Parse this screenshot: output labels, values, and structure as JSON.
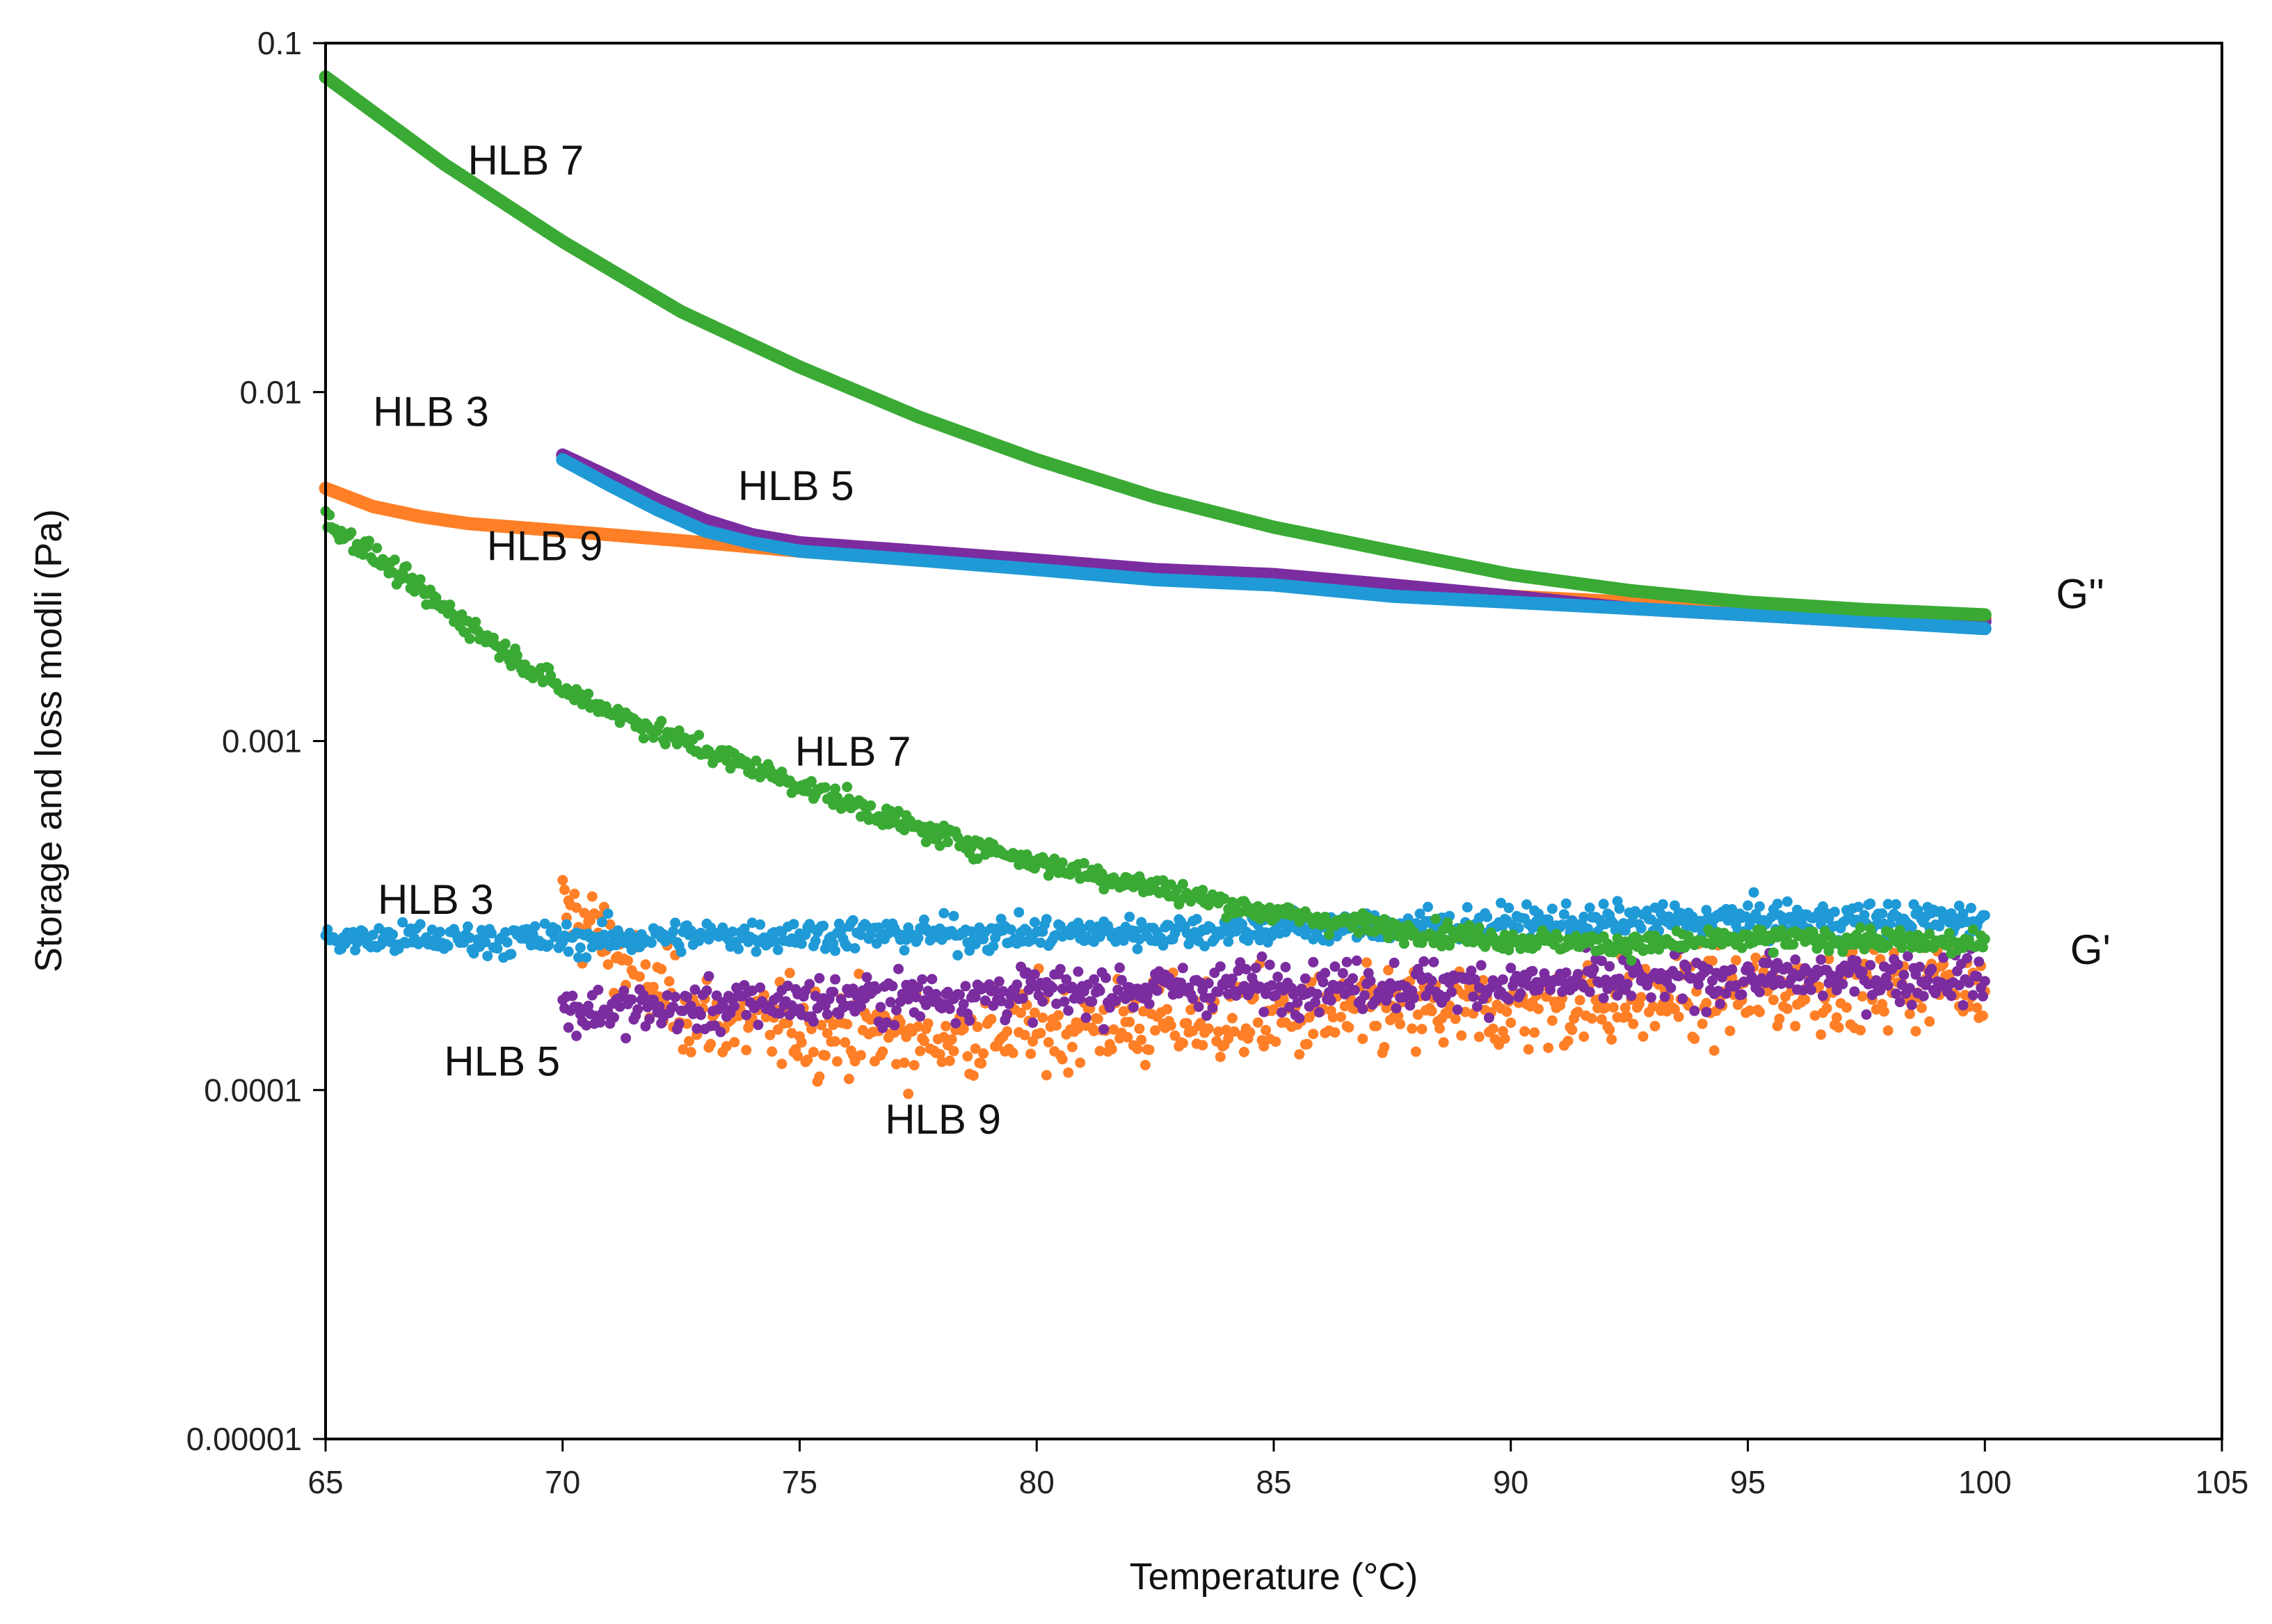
{
  "chart_data": {
    "type": "scatter",
    "title": "",
    "xlabel": "Temperature (°C)",
    "ylabel": "Storage and loss modli (Pa)",
    "xlim": [
      65,
      105
    ],
    "ylim": [
      1e-05,
      0.1
    ],
    "yscale": "log",
    "grid": false,
    "x_ticks": [
      65,
      70,
      75,
      80,
      85,
      90,
      95,
      100,
      105
    ],
    "x_tick_labels": [
      "65",
      "70",
      "75",
      "80",
      "85",
      "90",
      "95",
      "100",
      "105"
    ],
    "y_ticks": [
      1e-05,
      0.0001,
      0.001,
      0.01,
      0.1
    ],
    "y_tick_labels": [
      "0.00001",
      "0.0001",
      "0.001",
      "0.01",
      "0.1"
    ],
    "colors": {
      "HLB 3": "#1f9ad6",
      "HLB 5": "#7b2da0",
      "HLB 7": "#3aaa35",
      "HLB 9": "#ff7f27"
    },
    "series": [
      {
        "name": "HLB 7 G''",
        "sample": "HLB 7",
        "modulus": "G''",
        "noise": 0.0,
        "x": [
          65,
          67.5,
          70,
          72.5,
          75,
          77.5,
          80,
          82.5,
          85,
          87.5,
          90,
          92.5,
          95,
          97.5,
          100
        ],
        "y": [
          0.08,
          0.045,
          0.027,
          0.017,
          0.0118,
          0.0085,
          0.0064,
          0.005,
          0.0041,
          0.0035,
          0.003,
          0.0027,
          0.0025,
          0.00238,
          0.0023
        ]
      },
      {
        "name": "HLB 3 G''",
        "sample": "HLB 3",
        "modulus": "G''",
        "noise": 0.0,
        "x": [
          70,
          71,
          72,
          73,
          74,
          75,
          77.5,
          80,
          82.5,
          85,
          87.5,
          90,
          92.5,
          95,
          97.5,
          100
        ],
        "y": [
          0.0064,
          0.0054,
          0.0046,
          0.004,
          0.0037,
          0.0035,
          0.0033,
          0.0031,
          0.0029,
          0.0028,
          0.0026,
          0.0025,
          0.0024,
          0.0023,
          0.0022,
          0.0021
        ]
      },
      {
        "name": "HLB 5 G''",
        "sample": "HLB 5",
        "modulus": "G''",
        "noise": 0.0,
        "x": [
          70,
          71,
          72,
          73,
          74,
          75,
          77.5,
          80,
          82.5,
          85,
          87.5,
          90,
          92.5,
          95,
          97.5,
          100
        ],
        "y": [
          0.0066,
          0.0057,
          0.0049,
          0.0043,
          0.0039,
          0.0037,
          0.0035,
          0.0033,
          0.0031,
          0.003,
          0.0028,
          0.0026,
          0.0024,
          0.0023,
          0.0022,
          0.0022
        ]
      },
      {
        "name": "HLB 9 G''",
        "sample": "HLB 9",
        "modulus": "G''",
        "noise": 0.0,
        "x": [
          65,
          66,
          67,
          68,
          69,
          70,
          71,
          72,
          73,
          75,
          77.5,
          80,
          82.5,
          85,
          87.5,
          90,
          92.5,
          95,
          97.5,
          100
        ],
        "y": [
          0.0053,
          0.0047,
          0.0044,
          0.0042,
          0.0041,
          0.004,
          0.0039,
          0.0038,
          0.0037,
          0.0035,
          0.0033,
          0.0032,
          0.003,
          0.0029,
          0.0027,
          0.0026,
          0.0025,
          0.0024,
          0.0023,
          0.00225
        ]
      },
      {
        "name": "HLB 7 G'",
        "sample": "HLB 7",
        "modulus": "G'",
        "noise": 0.04,
        "x": [
          65,
          67.5,
          70,
          72.5,
          75,
          77.5,
          80,
          82.5,
          85,
          87.5,
          90,
          92.5,
          95,
          97.5,
          100
        ],
        "y": [
          0.0043,
          0.0024,
          0.0014,
          0.001,
          0.00075,
          0.00056,
          0.00045,
          0.00038,
          0.00032,
          0.00029,
          0.00027,
          0.00026,
          0.00027,
          0.00027,
          0.00026
        ]
      },
      {
        "name": "HLB 3 G'",
        "sample": "HLB 3",
        "modulus": "G'",
        "noise": 0.06,
        "x": [
          65,
          70,
          75,
          80,
          85,
          90,
          95,
          100
        ],
        "y": [
          0.00027,
          0.00027,
          0.00028,
          0.00028,
          0.00029,
          0.0003,
          0.00031,
          0.00031
        ]
      },
      {
        "name": "HLB 5 G'",
        "sample": "HLB 5",
        "modulus": "G'",
        "noise": 0.09,
        "x": [
          70,
          72.5,
          75,
          80,
          85,
          90,
          95,
          100
        ],
        "y": [
          0.00017,
          0.00017,
          0.00018,
          0.00019,
          0.0002,
          0.0002,
          0.00021,
          0.00021
        ]
      },
      {
        "name": "HLB 9 G'",
        "sample": "HLB 9",
        "modulus": "G'",
        "noise": 0.16,
        "x": [
          70,
          70.5,
          71,
          71.5,
          72,
          73,
          75,
          77.5,
          80,
          85,
          90,
          95,
          100
        ],
        "y": [
          0.00033,
          0.0003,
          0.00026,
          0.00022,
          0.00019,
          0.00016,
          0.00015,
          0.00014,
          0.00015,
          0.00016,
          0.00017,
          0.00019,
          0.00021
        ]
      }
    ],
    "annotations": [
      {
        "text": "HLB 7",
        "x": 68.0,
        "y": 0.042
      },
      {
        "text": "HLB 3",
        "x": 66.0,
        "y": 0.008
      },
      {
        "text": "HLB 5",
        "x": 73.7,
        "y": 0.0049
      },
      {
        "text": "HLB 9",
        "x": 68.4,
        "y": 0.0033
      },
      {
        "text": "HLB 7",
        "x": 74.9,
        "y": 0.00085
      },
      {
        "text": "HLB 3",
        "x": 66.1,
        "y": 0.00032
      },
      {
        "text": "HLB 5",
        "x": 67.5,
        "y": 0.00011
      },
      {
        "text": "HLB 9",
        "x": 76.8,
        "y": 7.5e-05
      },
      {
        "text": "G''",
        "x": 101.5,
        "y": 0.0024
      },
      {
        "text": "G'",
        "x": 101.8,
        "y": 0.00023
      }
    ]
  }
}
